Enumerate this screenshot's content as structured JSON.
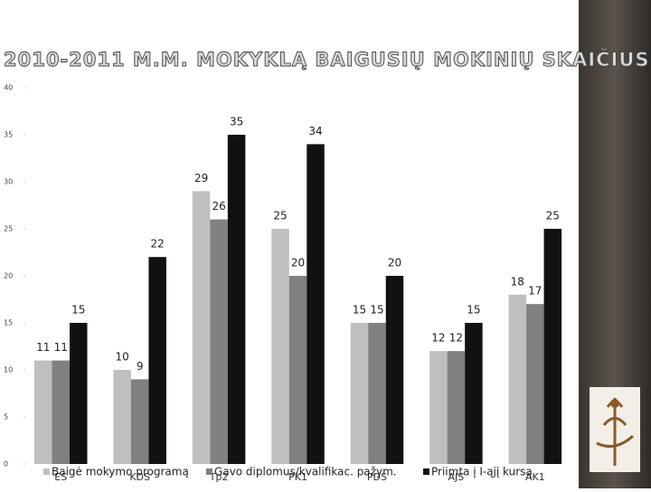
{
  "chart_data": {
    "type": "bar",
    "title": "2010-2011 M.M. MOKYKLĄ BAIGUSIŲ MOKINIŲ SKAIČIUS",
    "categories": [
      "ES",
      "KDS",
      "Tp2",
      "PK1",
      "PDS",
      "AJS",
      "AK1"
    ],
    "series": [
      {
        "name": "Baigė mokymo programą",
        "color": "#bfbfbf",
        "values": [
          11,
          10,
          29,
          25,
          15,
          12,
          18
        ]
      },
      {
        "name": "Gavo diplomus/kvalifikac. pažym.",
        "color": "#808080",
        "values": [
          11,
          9,
          26,
          20,
          15,
          12,
          17
        ]
      },
      {
        "name": "Priimta į I-ąjį kursą",
        "color": "#111111",
        "values": [
          15,
          22,
          35,
          34,
          20,
          15,
          25
        ]
      }
    ],
    "ylim": [
      0,
      40
    ],
    "yticks": [
      0,
      5,
      10,
      15,
      20,
      25,
      30,
      35,
      40
    ],
    "grid": false
  }
}
